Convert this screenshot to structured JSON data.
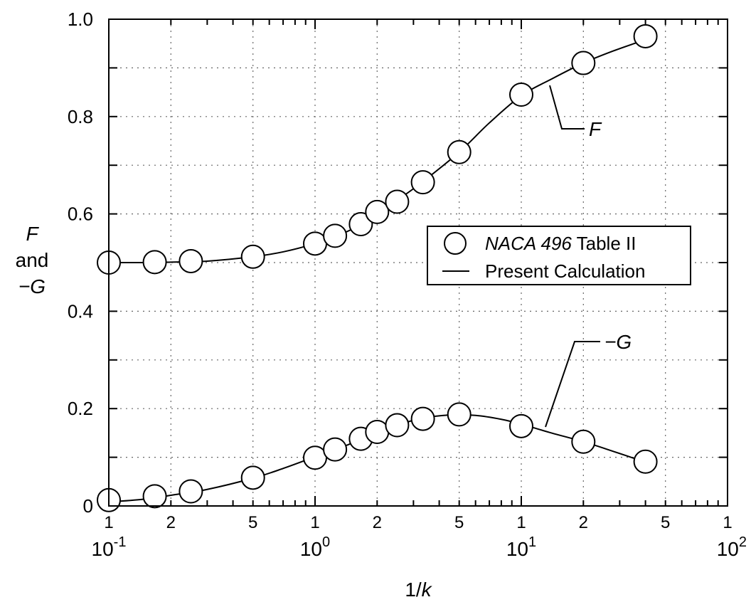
{
  "chart_data": {
    "type": "scatter",
    "x_scale": "log",
    "xlim": [
      0.1,
      100
    ],
    "ylim": [
      0,
      1.0
    ],
    "grid": true,
    "xlabel": "1/k",
    "ylabel_lines": [
      "F",
      "and",
      "−G"
    ],
    "y_ticks": [
      "0",
      "0.2",
      "0.4",
      "0.6",
      "0.8",
      "1.0"
    ],
    "x_minor_tick_labels": [
      {
        "value": 0.1,
        "label": "1"
      },
      {
        "value": 0.2,
        "label": "2"
      },
      {
        "value": 0.5,
        "label": "5"
      },
      {
        "value": 1,
        "label": "1"
      },
      {
        "value": 2,
        "label": "2"
      },
      {
        "value": 5,
        "label": "5"
      },
      {
        "value": 10,
        "label": "1"
      },
      {
        "value": 20,
        "label": "2"
      },
      {
        "value": 50,
        "label": "5"
      },
      {
        "value": 100,
        "label": "1"
      }
    ],
    "x_decade_labels": [
      {
        "value": 0.1,
        "base": "10",
        "exp": "-1"
      },
      {
        "value": 1,
        "base": "10",
        "exp": "0"
      },
      {
        "value": 10,
        "base": "10",
        "exp": "1"
      },
      {
        "value": 100,
        "base": "10",
        "exp": "2"
      }
    ],
    "legend": {
      "placement": "center-right",
      "entries": [
        {
          "marker": "circle",
          "text_italic": "NACA 496",
          "text": " Table II"
        },
        {
          "marker": "line",
          "text": "Present Calculation"
        }
      ]
    },
    "annotations": [
      {
        "text": "F",
        "target": "F",
        "style": "italic"
      },
      {
        "text": "−G",
        "target": "-G",
        "style": "italic"
      }
    ],
    "series": [
      {
        "name": "F",
        "points_x": [
          0.1,
          0.167,
          0.25,
          0.5,
          1.0,
          1.25,
          1.667,
          2.0,
          2.5,
          3.333,
          5.0,
          10.0,
          20.0,
          40.0
        ],
        "points_y": [
          0.5,
          0.501,
          0.503,
          0.512,
          0.539,
          0.555,
          0.579,
          0.604,
          0.625,
          0.665,
          0.727,
          0.845,
          0.91,
          0.965
        ],
        "curve_x": [
          0.1,
          0.15,
          0.2,
          0.3,
          0.5,
          0.7,
          1.0,
          1.3,
          1.7,
          2.0,
          2.5,
          3.3,
          5.0,
          7.0,
          10.0,
          14.0,
          20.0,
          28.0,
          40.0
        ],
        "curve_y": [
          0.5,
          0.5,
          0.501,
          0.503,
          0.512,
          0.522,
          0.539,
          0.556,
          0.58,
          0.602,
          0.628,
          0.665,
          0.727,
          0.787,
          0.843,
          0.877,
          0.91,
          0.935,
          0.958
        ]
      },
      {
        "name": "-G",
        "points_x": [
          0.1,
          0.167,
          0.25,
          0.5,
          1.0,
          1.25,
          1.667,
          2.0,
          2.5,
          3.333,
          5.0,
          10.0,
          20.0,
          40.0
        ],
        "points_y": [
          0.012,
          0.02,
          0.03,
          0.058,
          0.099,
          0.116,
          0.138,
          0.152,
          0.166,
          0.179,
          0.188,
          0.164,
          0.132,
          0.091
        ],
        "curve_x": [
          0.1,
          0.15,
          0.2,
          0.3,
          0.5,
          0.7,
          1.0,
          1.3,
          1.7,
          2.0,
          2.5,
          3.3,
          4.5,
          6.0,
          8.0,
          10.0,
          14.0,
          20.0,
          28.0,
          40.0
        ],
        "curve_y": [
          0.008,
          0.014,
          0.022,
          0.034,
          0.057,
          0.077,
          0.101,
          0.118,
          0.138,
          0.15,
          0.166,
          0.18,
          0.187,
          0.186,
          0.178,
          0.168,
          0.15,
          0.132,
          0.112,
          0.09
        ]
      }
    ]
  }
}
